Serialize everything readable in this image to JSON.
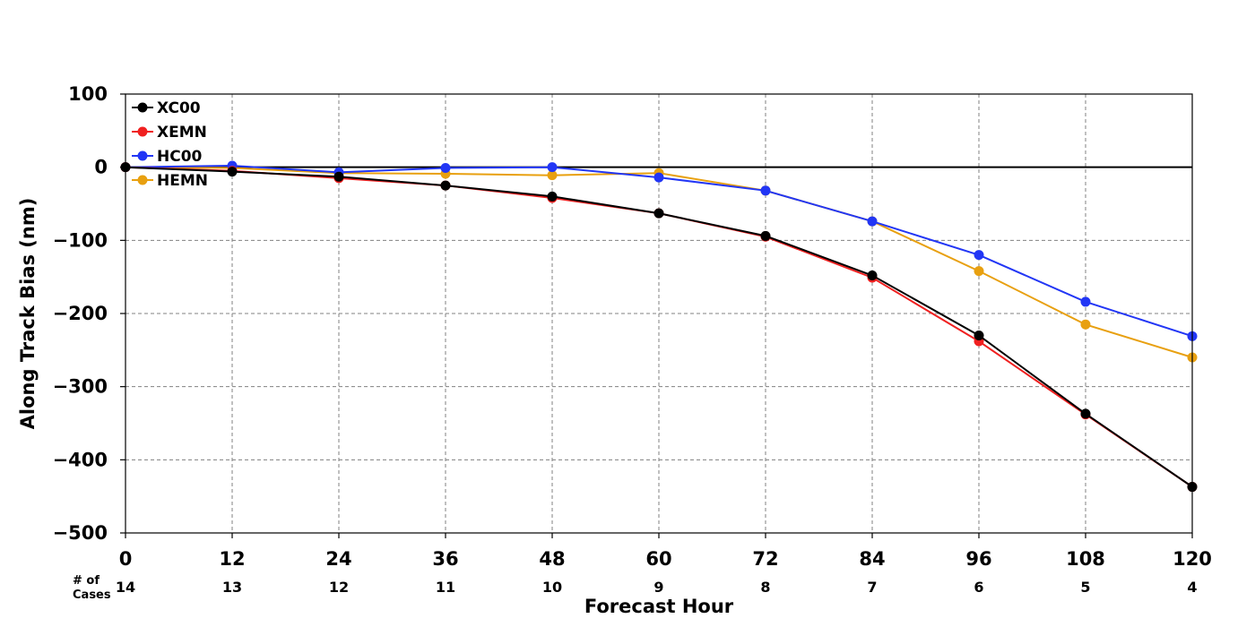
{
  "chart_data": {
    "type": "line",
    "xlabel": "Forecast Hour",
    "ylabel": "Along Track Bias (nm)",
    "x": [
      0,
      12,
      24,
      36,
      48,
      60,
      72,
      84,
      96,
      108,
      120
    ],
    "xlim": [
      0,
      120
    ],
    "ylim": [
      -500,
      100
    ],
    "x_ticks": [
      0,
      12,
      24,
      36,
      48,
      60,
      72,
      84,
      96,
      108,
      120
    ],
    "y_ticks": [
      100,
      0,
      -100,
      -200,
      -300,
      -400,
      -500
    ],
    "x_tick_labels": [
      "0",
      "12",
      "24",
      "36",
      "48",
      "60",
      "72",
      "84",
      "96",
      "108",
      "120"
    ],
    "y_tick_labels": [
      "100",
      "0",
      "−100",
      "−200",
      "−300",
      "−400",
      "−500"
    ],
    "grid": true,
    "legend_position": "top-left",
    "cases_label_line1": "# of",
    "cases_label_line2": "Cases",
    "cases": [
      "14",
      "13",
      "12",
      "11",
      "10",
      "9",
      "8",
      "7",
      "6",
      "5",
      "4"
    ],
    "series": [
      {
        "name": "XC00",
        "color": "#000000",
        "values": [
          0,
          -6,
          -13,
          -25,
          -40,
          -63,
          -94,
          -148,
          -230,
          -337,
          -437
        ]
      },
      {
        "name": "XEMN",
        "color": "#f02020",
        "values": [
          0,
          -5,
          -15,
          -25,
          -42,
          -63,
          -95,
          -151,
          -238,
          -338,
          -437
        ]
      },
      {
        "name": "HC00",
        "color": "#2236f5",
        "values": [
          0,
          2,
          -7,
          -1,
          0,
          -14,
          -32,
          -74,
          -120,
          -184,
          -231
        ]
      },
      {
        "name": "HEMN",
        "color": "#e8a010",
        "values": [
          0,
          -1,
          -8,
          -9,
          -11,
          -8,
          -32,
          -74,
          -142,
          -215,
          -260
        ]
      }
    ]
  }
}
